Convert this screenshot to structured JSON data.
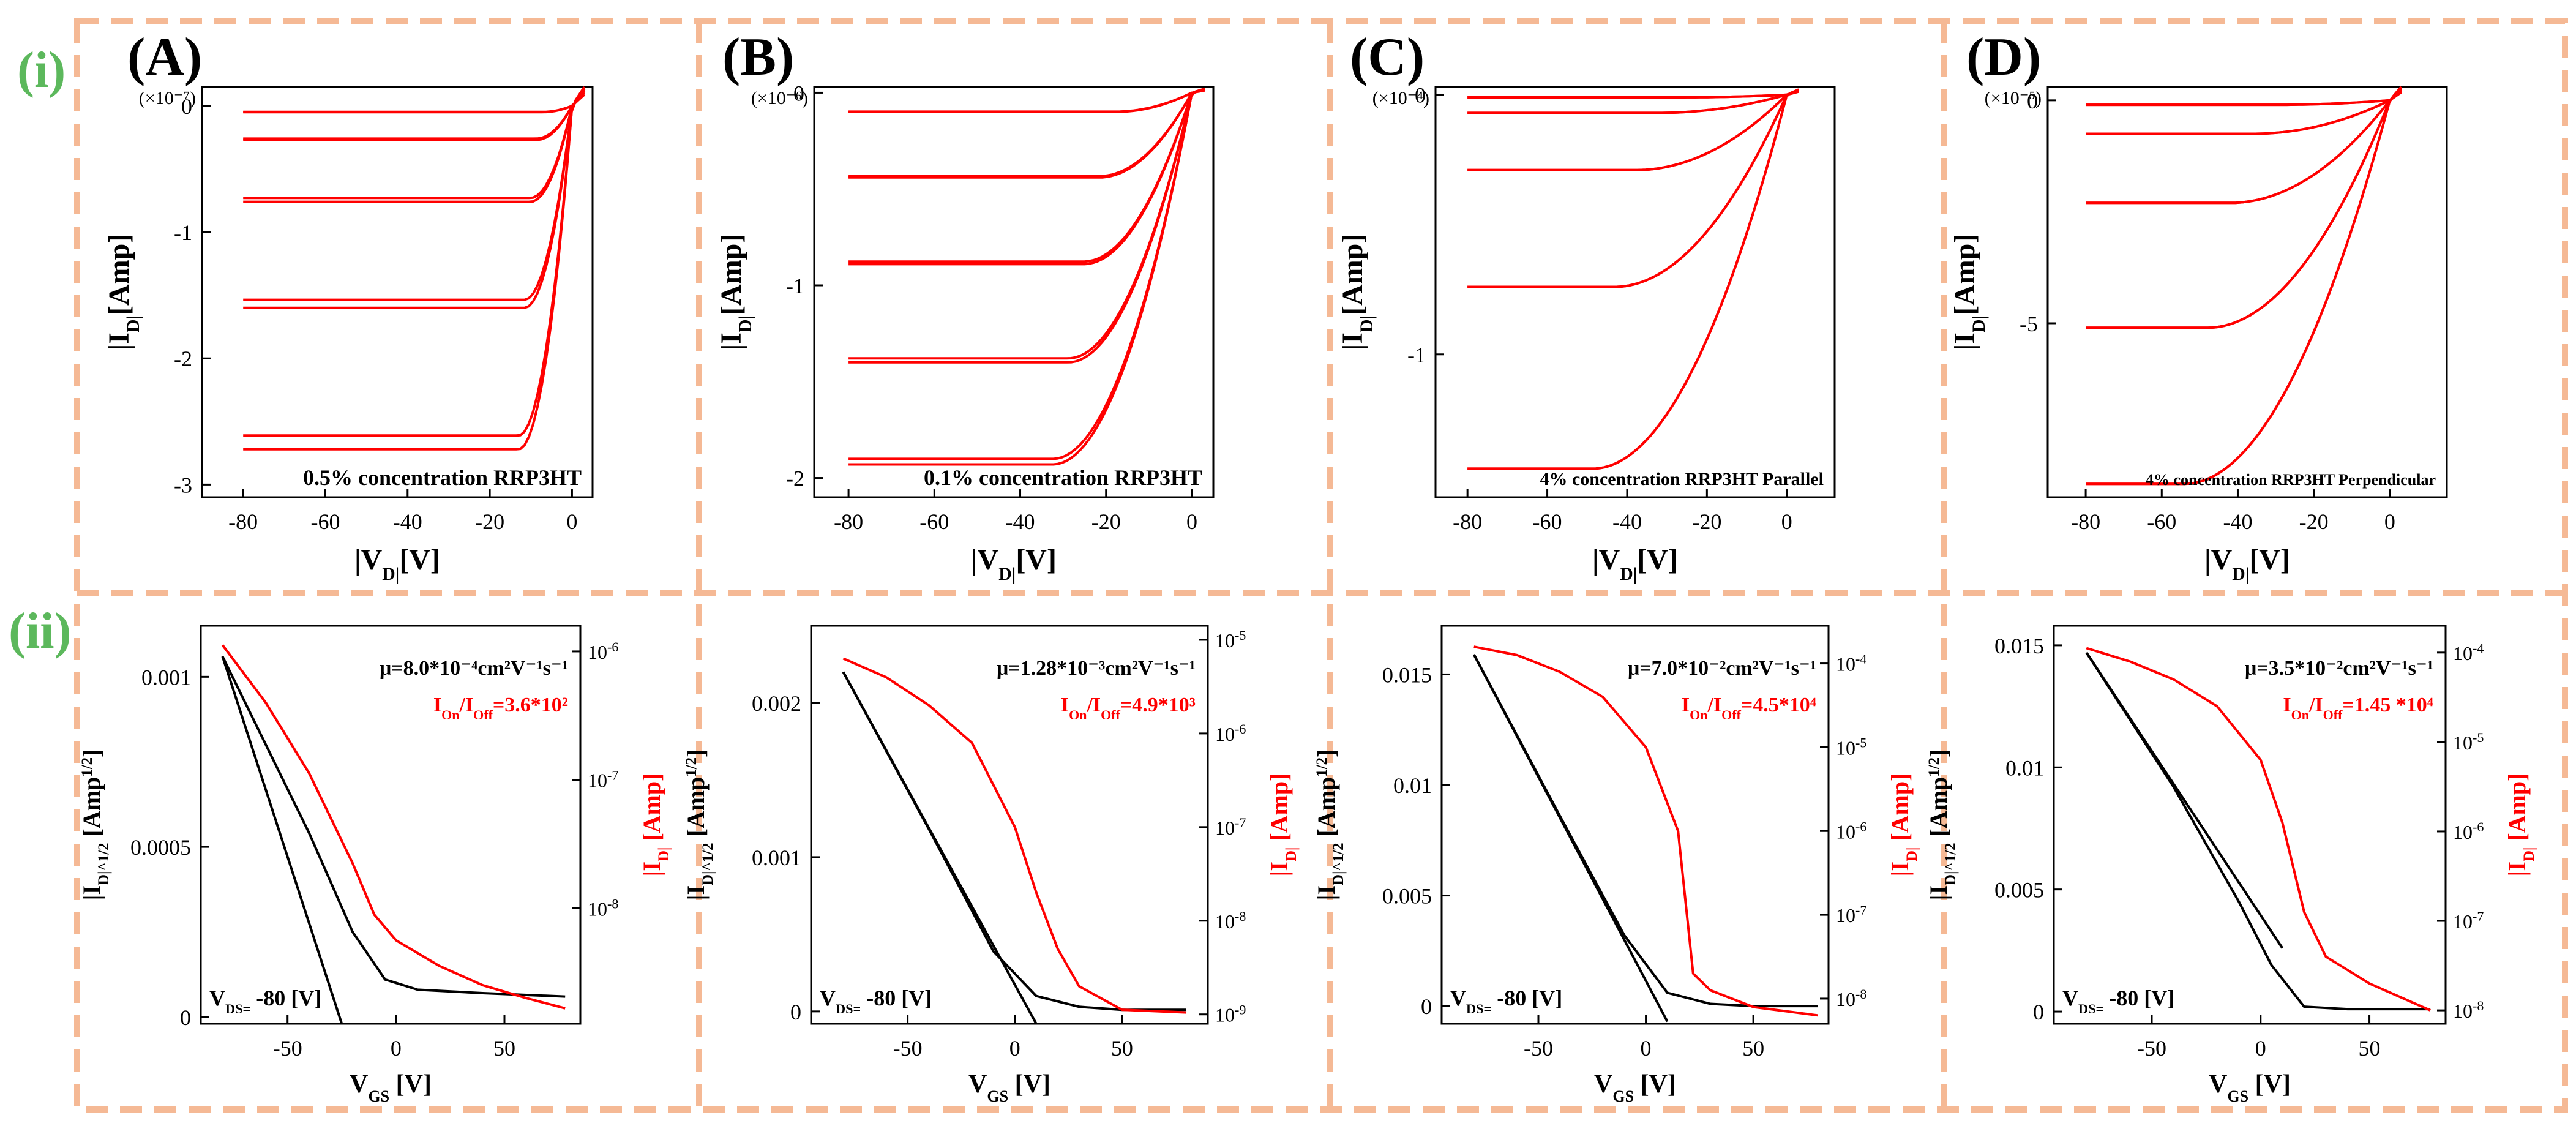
{
  "figure": {
    "row_labels": [
      "(i)",
      "(ii)"
    ],
    "panel_labels": [
      "(A)",
      "(B)",
      "(C)",
      "(D)"
    ]
  },
  "colors": {
    "frame": "#f5b995",
    "row_label": "#5cb85c",
    "curve": "#ff0000",
    "transfer_sqrt": "#000000",
    "axes": "#000000"
  },
  "chart_data": [
    {
      "id": "Ai",
      "type": "line",
      "panel": "(A)",
      "row": "(i)",
      "xlabel": "|V_D|[V]",
      "ylabel": "|I_D|[Amp]",
      "multiplier": "(×10⁻⁷)",
      "annotation": "0.5% concentration RRP3HT",
      "xlim": [
        -90,
        5
      ],
      "ylim": [
        -3.1,
        0.15
      ],
      "xticks": [
        -80,
        -60,
        -40,
        -20,
        0
      ],
      "yticks": [
        0,
        -1,
        -2,
        -3
      ],
      "saturation": [
        -0.05,
        -0.27,
        -0.76,
        -1.6,
        -2.72
      ],
      "vt": 12,
      "hysteresis": 0.04,
      "overshoot": 0.15
    },
    {
      "id": "Bi",
      "type": "line",
      "panel": "(B)",
      "row": "(i)",
      "xlabel": "|V_D|[V]",
      "ylabel": "|I_D|[Amp]",
      "multiplier": "(×10⁻⁶)",
      "annotation": "0.1% concentration RRP3HT",
      "xlim": [
        -88,
        5
      ],
      "ylim": [
        -2.1,
        0.03
      ],
      "xticks": [
        -80,
        -60,
        -40,
        -20,
        0
      ],
      "yticks": [
        0,
        -1,
        -2
      ],
      "saturation": [
        -0.1,
        -0.44,
        -0.89,
        -1.4,
        -1.93
      ],
      "vt": 30,
      "hysteresis": 0.015,
      "overshoot": 0.02
    },
    {
      "id": "Ci",
      "type": "line",
      "panel": "(C)",
      "row": "(i)",
      "xlabel": "|V_D|[V]",
      "ylabel": "|I_D|[Amp]",
      "multiplier": "(×10⁻⁴)",
      "annotation": "4% concentration RRP3HT Parallel",
      "xlim": [
        -88,
        12
      ],
      "ylim": [
        -1.55,
        0.03
      ],
      "xticks": [
        -80,
        -60,
        -40,
        -20,
        0
      ],
      "yticks": [
        0,
        -1
      ],
      "saturation": [
        -0.01,
        -0.07,
        -0.29,
        -0.74,
        -1.44
      ],
      "vt": 45,
      "hysteresis": 0.0,
      "overshoot": 0.02
    },
    {
      "id": "Di",
      "type": "line",
      "panel": "(D)",
      "row": "(i)",
      "xlabel": "|V_D|[V]",
      "ylabel": "|I_D|[Amp]",
      "multiplier": "(×10⁻⁵)",
      "annotation": "4% concentration RRP3HT Perpendicular",
      "xlim": [
        -90,
        15
      ],
      "ylim": [
        -8.9,
        0.3
      ],
      "xticks": [
        -80,
        -60,
        -40,
        -20,
        0
      ],
      "yticks": [
        0,
        -5
      ],
      "saturation": [
        -0.1,
        -0.75,
        -2.3,
        -5.1,
        -8.6
      ],
      "vt": 50,
      "hysteresis": 0.0,
      "overshoot": 0.3
    },
    {
      "id": "Aii",
      "type": "line",
      "panel": "(A)",
      "row": "(ii)",
      "xlabel": "V_GS [V]",
      "ylabel": "|I_D|^1/2 [Amp^1/2]",
      "ylabel_right": "|I_D| [Amp]",
      "legend": "V_DS= -80 [V]",
      "mobility": "μ=8.0*10⁻⁴cm²V⁻¹s⁻¹",
      "onoff": "I_On/I_Off=3.6*10²",
      "xlim": [
        -90,
        85
      ],
      "ylim": [
        -2e-05,
        0.00115
      ],
      "xticks": [
        -50,
        0,
        50
      ],
      "yticks": [
        0,
        0.0005,
        0.001
      ],
      "ytick_labels": [
        "0",
        "0.0005",
        "0.001"
      ],
      "y2lim_exp": [
        -8.9,
        -5.8
      ],
      "y2ticks_exp": [
        -8,
        -7,
        -6
      ],
      "fit_line": {
        "x": [
          -80,
          -25
        ],
        "y": [
          0.00106,
          -2e-05
        ]
      },
      "sqrt_curve": {
        "x": [
          -80,
          -60,
          -40,
          -20,
          -5,
          10,
          40,
          78
        ],
        "y": [
          0.00106,
          0.0008,
          0.00054,
          0.00025,
          0.00011,
          8e-05,
          7e-05,
          6e-05
        ]
      },
      "log_curve": {
        "x": [
          -80,
          -60,
          -40,
          -20,
          -10,
          0,
          20,
          40,
          60,
          78
        ],
        "y_exp": [
          -5.95,
          -6.4,
          -6.95,
          -7.65,
          -8.05,
          -8.25,
          -8.45,
          -8.6,
          -8.7,
          -8.78
        ]
      }
    },
    {
      "id": "Bii",
      "type": "line",
      "panel": "(B)",
      "row": "(ii)",
      "xlabel": "V_GS [V]",
      "ylabel": "|I_D|^1/2 [Amp^1/2]",
      "ylabel_right": "|I_D| [Amp]",
      "legend": "V_DS= -80 [V]",
      "mobility": "μ=1.28*10⁻³cm²V⁻¹s⁻¹",
      "onoff": "I_On/I_Off=4.9*10³",
      "xlim": [
        -95,
        90
      ],
      "ylim": [
        -8e-05,
        0.0025
      ],
      "xticks": [
        -50,
        0,
        50
      ],
      "yticks": [
        0,
        0.001,
        0.002
      ],
      "ytick_labels": [
        "0",
        "0.001",
        "0.002"
      ],
      "y2lim_exp": [
        -9.1,
        -4.85
      ],
      "y2ticks_exp": [
        -9,
        -8,
        -7,
        -6,
        -5
      ],
      "fit_line": {
        "x": [
          -80,
          10
        ],
        "y": [
          0.0022,
          -8e-05
        ]
      },
      "sqrt_curve": {
        "x": [
          -80,
          -40,
          -10,
          10,
          30,
          50,
          80
        ],
        "y": [
          0.0022,
          0.00118,
          0.00039,
          0.0001,
          3e-05,
          1e-05,
          1e-05
        ]
      },
      "log_curve": {
        "x": [
          -80,
          -60,
          -40,
          -20,
          0,
          10,
          20,
          30,
          50,
          80
        ],
        "y_exp": [
          -5.2,
          -5.4,
          -5.7,
          -6.1,
          -7.0,
          -7.7,
          -8.3,
          -8.7,
          -8.95,
          -8.98
        ]
      }
    },
    {
      "id": "Cii",
      "type": "line",
      "panel": "(C)",
      "row": "(ii)",
      "xlabel": "V_GS [V]",
      "ylabel": "|I_D|^1/2 [Amp^1/2]",
      "ylabel_right": "|I_D| [Amp]",
      "legend": "V_DS= -80 [V]",
      "mobility": "μ=7.0*10⁻²cm²V⁻¹s⁻¹",
      "onoff": "I_On/I_Off=4.5*10⁴",
      "xlim": [
        -95,
        85
      ],
      "ylim": [
        -0.0008,
        0.0172
      ],
      "xticks": [
        -50,
        0,
        50
      ],
      "yticks": [
        0,
        0.005,
        0.01,
        0.015
      ],
      "ytick_labels": [
        "0",
        "0.005",
        "0.01",
        "0.015"
      ],
      "y2lim_exp": [
        -8.3,
        -3.55
      ],
      "y2ticks_exp": [
        -8,
        -7,
        -6,
        -5,
        -4
      ],
      "fit_line": {
        "x": [
          -80,
          10
        ],
        "y": [
          0.0159,
          -0.0007
        ]
      },
      "sqrt_curve": {
        "x": [
          -80,
          -40,
          -10,
          10,
          30,
          50,
          80
        ],
        "y": [
          0.0159,
          0.0086,
          0.0032,
          0.0006,
          0.0001,
          0.0,
          0.0
        ]
      },
      "log_curve": {
        "x": [
          -80,
          -60,
          -40,
          -20,
          0,
          15,
          22,
          30,
          50,
          80
        ],
        "y_exp": [
          -3.8,
          -3.9,
          -4.1,
          -4.4,
          -5.0,
          -6.0,
          -7.7,
          -7.9,
          -8.1,
          -8.2
        ]
      }
    },
    {
      "id": "Dii",
      "type": "line",
      "panel": "(D)",
      "row": "(ii)",
      "xlabel": "V_GS [V]",
      "ylabel": "|I_D|^1/2 [Amp^1/2]",
      "ylabel_right": "|I_D| [Amp]",
      "legend": "V_DS= -80 [V]",
      "mobility": "μ=3.5*10⁻²cm²V⁻¹s⁻¹",
      "onoff": "I_On/I_Off=1.45 *10⁴",
      "xlim": [
        -95,
        85
      ],
      "ylim": [
        -0.0005,
        0.0158
      ],
      "xticks": [
        -50,
        0,
        50
      ],
      "yticks": [
        0,
        0.005,
        0.01,
        0.015
      ],
      "ytick_labels": [
        "0",
        "0.005",
        "0.01",
        "0.015"
      ],
      "y2lim_exp": [
        -8.15,
        -3.7
      ],
      "y2ticks_exp": [
        -8,
        -7,
        -6,
        -5,
        -4
      ],
      "fit_line": {
        "x": [
          -80,
          10
        ],
        "y": [
          0.0147,
          0.0026
        ]
      },
      "sqrt_curve": {
        "x": [
          -80,
          -40,
          -10,
          5,
          20,
          40,
          78
        ],
        "y": [
          0.0147,
          0.0092,
          0.0045,
          0.0019,
          0.0002,
          0.0001,
          0.0001
        ]
      },
      "log_curve": {
        "x": [
          -80,
          -60,
          -40,
          -20,
          0,
          10,
          20,
          30,
          50,
          78
        ],
        "y_exp": [
          -3.95,
          -4.1,
          -4.3,
          -4.6,
          -5.2,
          -5.9,
          -6.9,
          -7.4,
          -7.7,
          -8.0
        ]
      }
    }
  ]
}
